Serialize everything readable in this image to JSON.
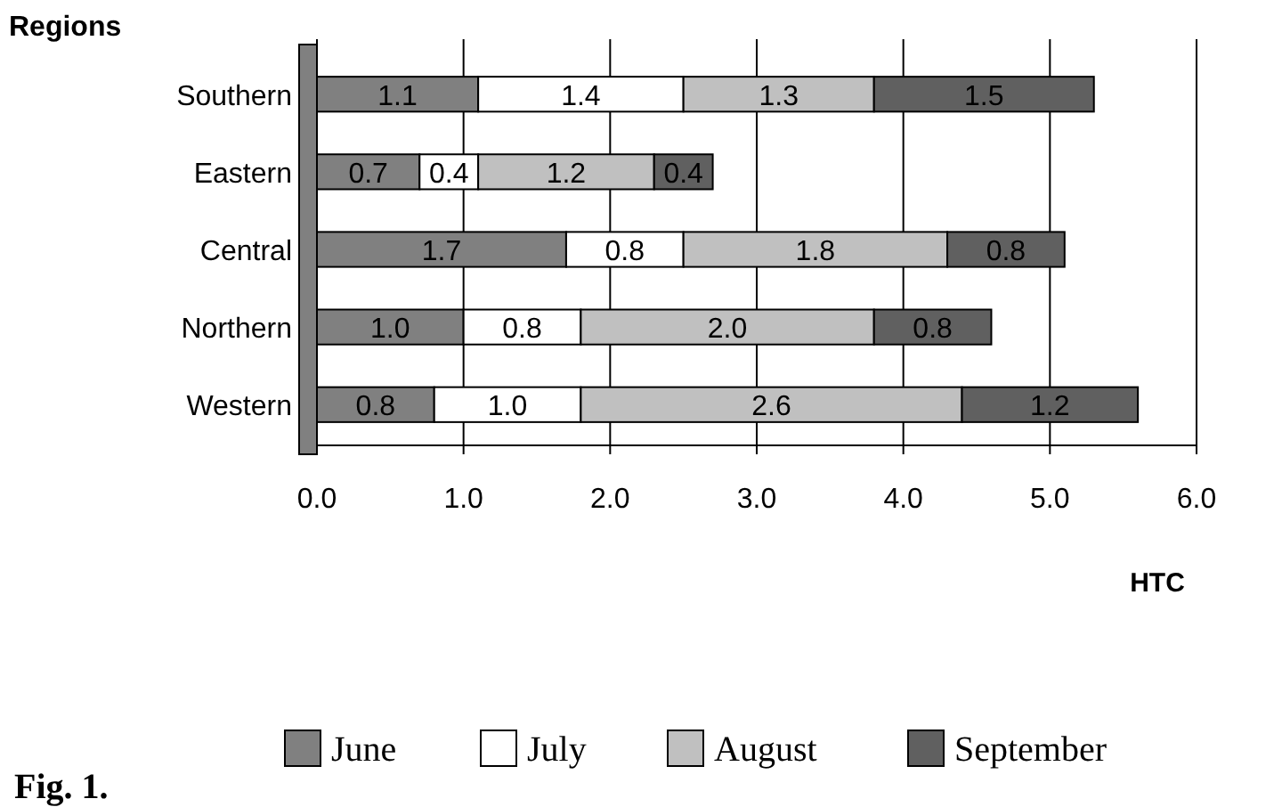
{
  "chart_data": {
    "type": "bar",
    "orientation": "horizontal",
    "stacked": true,
    "ylabel": "Regions",
    "xlabel": "HTC",
    "categories": [
      "Southern",
      "Eastern",
      "Central",
      "Northern",
      "Western"
    ],
    "series": [
      {
        "name": "June",
        "color": "#808080",
        "values": [
          1.1,
          0.7,
          1.7,
          1.0,
          0.8
        ],
        "value_labels": [
          "1.1",
          "0.7",
          "1.7",
          "1.0",
          "0.8"
        ]
      },
      {
        "name": "July",
        "color": "#ffffff",
        "values": [
          1.4,
          0.4,
          0.8,
          0.8,
          1.0
        ],
        "value_labels": [
          "1.4",
          "0.4",
          "0.8",
          "0.8",
          "1.0"
        ]
      },
      {
        "name": "August",
        "color": "#c0c0c0",
        "values": [
          1.3,
          1.2,
          1.8,
          2.0,
          2.6
        ],
        "value_labels": [
          "1.3",
          "1.2",
          "1.8",
          "2.0",
          "2.6"
        ]
      },
      {
        "name": "September",
        "color": "#606060",
        "values": [
          1.5,
          0.4,
          0.8,
          0.8,
          1.2
        ],
        "value_labels": [
          "1.5",
          "0.4",
          "0.8",
          "0.8",
          "1.2"
        ]
      }
    ],
    "xlim": [
      0,
      6
    ],
    "xticks": [
      {
        "value": 0,
        "label": "0.0"
      },
      {
        "value": 1,
        "label": "1.0"
      },
      {
        "value": 2,
        "label": "2.0"
      },
      {
        "value": 3,
        "label": "3.0"
      },
      {
        "value": 4,
        "label": "4.0"
      },
      {
        "value": 5,
        "label": "5.0"
      },
      {
        "value": 6,
        "label": "6.0"
      }
    ],
    "grid": "x",
    "legend": "bottom",
    "annotations": [
      "Fig. 1."
    ]
  }
}
